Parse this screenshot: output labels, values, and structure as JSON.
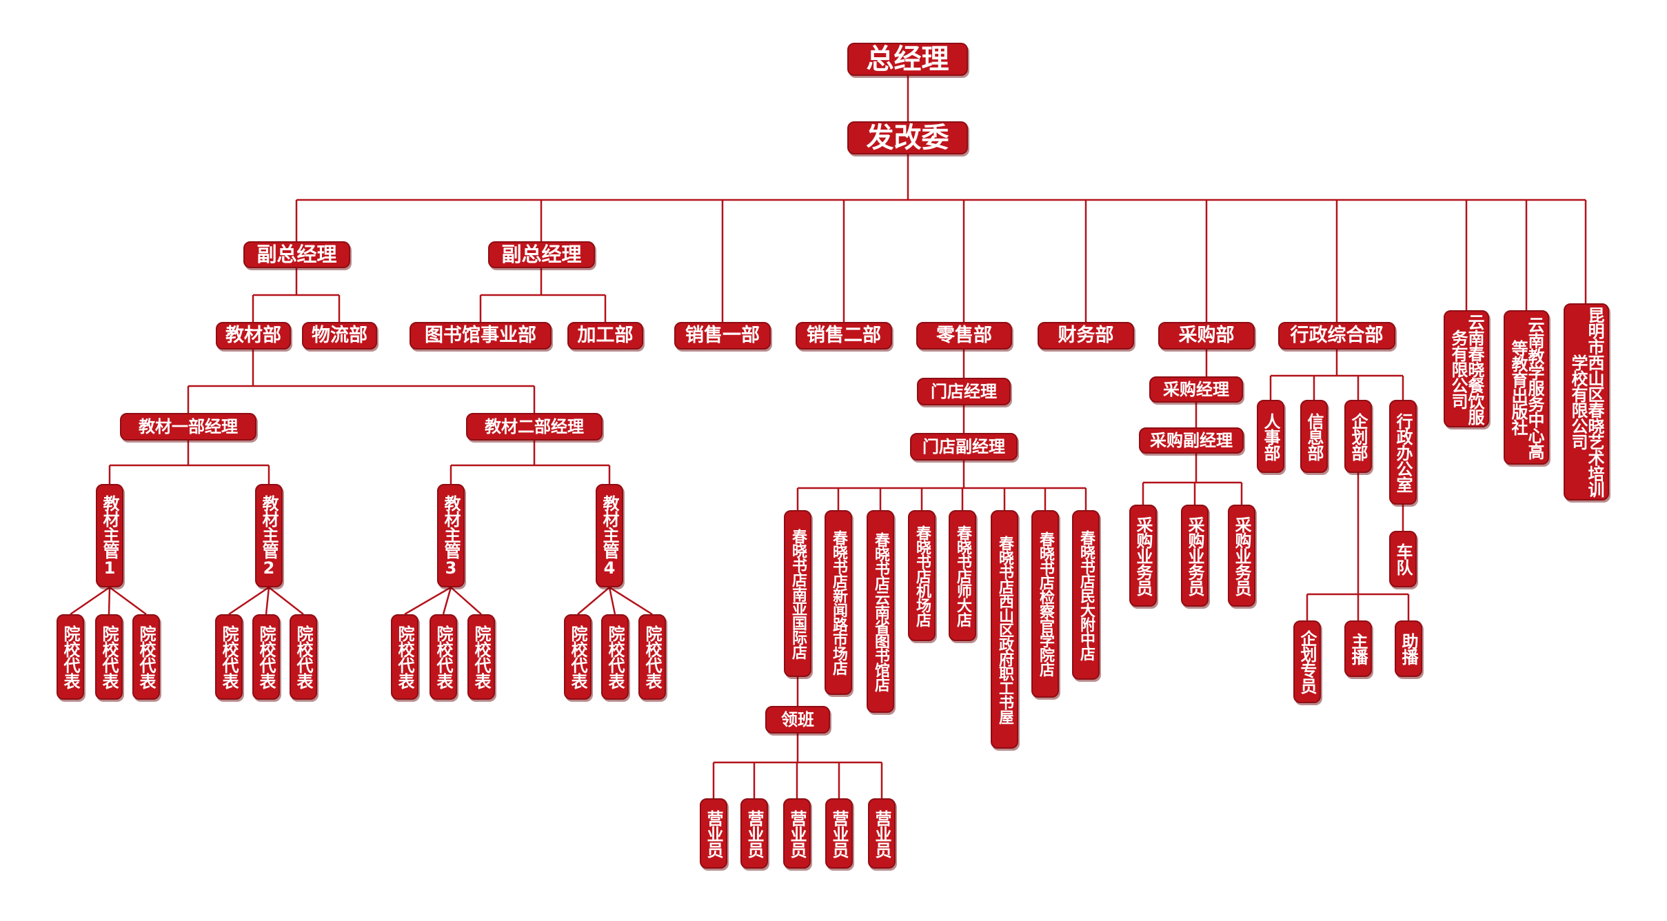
{
  "colors": {
    "node": "#c0141c",
    "border": "#8e0d13",
    "line": "#b3121a",
    "text": "#ffffff"
  },
  "nodes": {
    "gm": "总经理",
    "fgw": "发改委",
    "vgm1": "副总经理",
    "vgm2": "副总经理",
    "jcb": "教材部",
    "wlb": "物流部",
    "tsg": "图书馆事业部",
    "jgb": "加工部",
    "xs1": "销售一部",
    "xs2": "销售二部",
    "lsb": "零售部",
    "cwb": "财务部",
    "cgb": "采购部",
    "xzzh": "行政综合部",
    "cyfw": "云南春晓餐饮服务有限公司",
    "gdjy": "云南教学服务中心高等教育出版社",
    "pxxx": "昆明市西山区春晓艺术培训学校有限公司",
    "jc1jl": "教材一部经理",
    "jc2jl": "教材二部经理",
    "zg1": "教材主管1",
    "zg2": "教材主管2",
    "zg3": "教材主管3",
    "zg4": "教材主管4",
    "yxdb": "院校代表",
    "mdjl": "门店经理",
    "mdfjl": "门店副经理",
    "store1": "春晓书店南亚国际店",
    "store2": "春晓书店新闻路市场店",
    "store3": "春晓书店云南省图书馆店",
    "store4": "春晓书店机场店",
    "store5": "春晓书店师大店",
    "store6": "春晓书店西山区政府职工书屋",
    "store7": "春晓书店检察官学院店",
    "store8": "春晓书店民大附中店",
    "lingban": "领班",
    "yyy": "营业员",
    "cgjl": "采购经理",
    "cgfjl": "采购副经理",
    "cgywy": "采购业务员",
    "rsb": "人事部",
    "xxb": "信息部",
    "qhb": "企划部",
    "xzbgs": "行政办公室",
    "chedui": "车队",
    "qhzy": "企划专员",
    "zhubo": "主播",
    "zhubo2": "助播"
  }
}
